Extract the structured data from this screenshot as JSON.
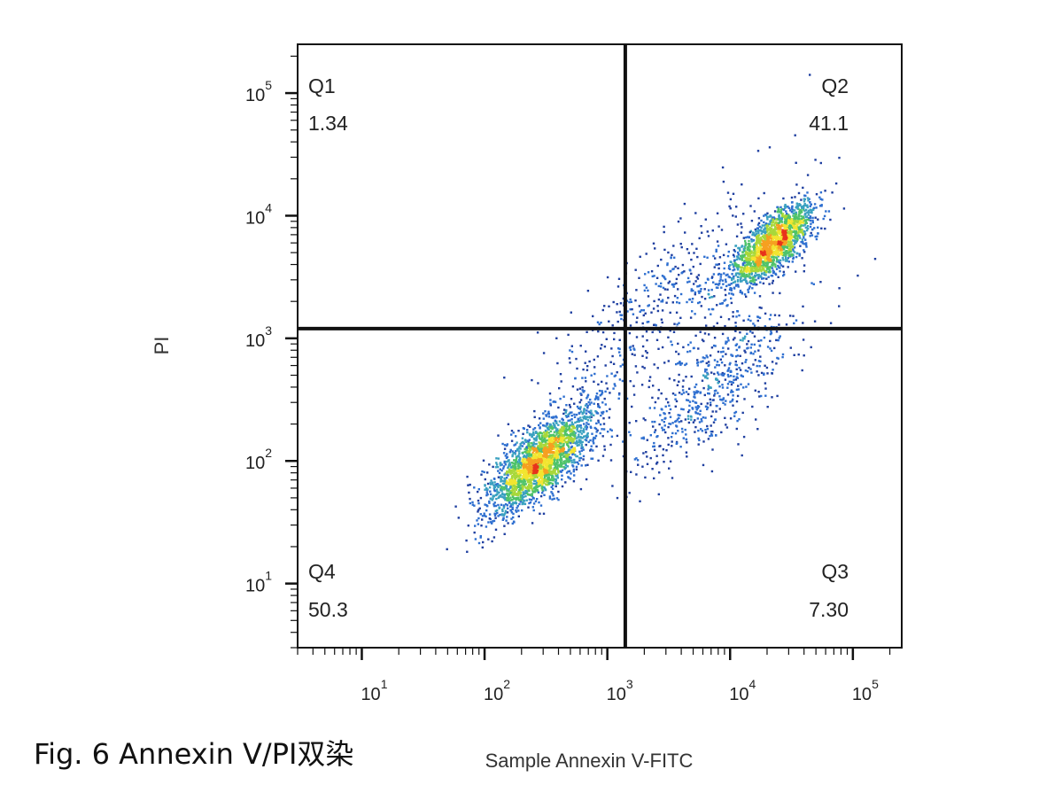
{
  "caption": "Fig. 6  Annexin V/PI双染",
  "chart_data": {
    "type": "scatter",
    "xlabel": "Sample Annexin V-FITC",
    "ylabel": "PI",
    "xscale": "log",
    "yscale": "log",
    "xlim": [
      3,
      250000
    ],
    "ylim": [
      3,
      250000
    ],
    "x_ticks": [
      {
        "base": "10",
        "exp": "1"
      },
      {
        "base": "10",
        "exp": "2"
      },
      {
        "base": "10",
        "exp": "3"
      },
      {
        "base": "10",
        "exp": "4"
      },
      {
        "base": "10",
        "exp": "5"
      }
    ],
    "y_ticks": [
      {
        "base": "10",
        "exp": "1"
      },
      {
        "base": "10",
        "exp": "2"
      },
      {
        "base": "10",
        "exp": "3"
      },
      {
        "base": "10",
        "exp": "4"
      },
      {
        "base": "10",
        "exp": "5"
      }
    ],
    "x_tick_values": [
      10,
      100,
      1000,
      10000,
      100000
    ],
    "y_tick_values": [
      10,
      100,
      1000,
      10000,
      100000
    ],
    "gate": {
      "x": 1400,
      "y": 1200
    },
    "quadrants": [
      {
        "name": "Q1",
        "value": "1.34",
        "position": "top-left"
      },
      {
        "name": "Q2",
        "value": "41.1",
        "position": "top-right"
      },
      {
        "name": "Q3",
        "value": "7.30",
        "position": "bottom-right"
      },
      {
        "name": "Q4",
        "value": "50.3",
        "position": "bottom-left"
      }
    ],
    "populations": [
      {
        "center_x": 280,
        "center_y": 100,
        "count": 2400,
        "spread": 0.22
      },
      {
        "center_x": 22000,
        "center_y": 6000,
        "count": 1800,
        "spread": 0.17
      },
      {
        "center_x": 7000,
        "center_y": 400,
        "count": 600,
        "spread": 0.35
      },
      {
        "center_x": 3000,
        "center_y": 2000,
        "count": 500,
        "spread": 0.45
      }
    ],
    "colormap": [
      "#1f3fa0",
      "#2e6fd0",
      "#3aa1c0",
      "#4fc36a",
      "#a8d83a",
      "#f2e530",
      "#f6a021",
      "#e8331c"
    ],
    "grid": false,
    "legend": "none"
  }
}
